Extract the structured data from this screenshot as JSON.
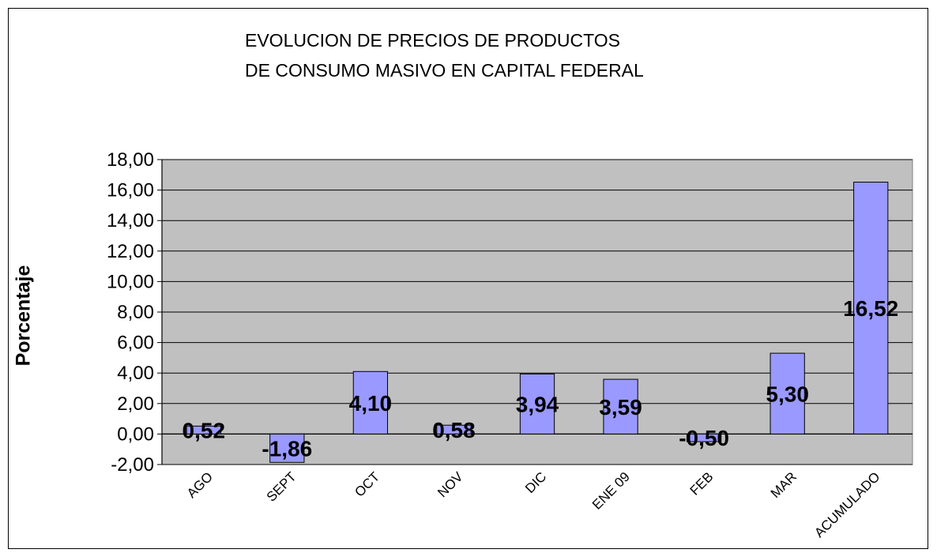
{
  "chart_data": {
    "type": "bar",
    "title_lines": [
      "EVOLUCION DE PRECIOS   DE PRODUCTOS",
      "DE CONSUMO MASIVO  EN CAPITAL FEDERAL"
    ],
    "ylabel": "Porcentaje",
    "xlabel": "",
    "categories": [
      "AGO",
      "SEPT",
      "OCT",
      "NOV",
      "DIC",
      "ENE 09",
      "FEB",
      "MAR",
      "ACUMULADO"
    ],
    "values": [
      0.52,
      -1.86,
      4.1,
      0.58,
      3.94,
      3.59,
      -0.5,
      5.3,
      16.52
    ],
    "value_labels": [
      "0,52",
      "-1,86",
      "4,10",
      "0,58",
      "3,94",
      "3,59",
      "-0,50",
      "5,30",
      "16,52"
    ],
    "ylim": [
      -2,
      18
    ],
    "yticks": [
      -2,
      0,
      2,
      4,
      6,
      8,
      10,
      12,
      14,
      16,
      18
    ],
    "ytick_labels": [
      "-2,00",
      "0,00",
      "2,00",
      "4,00",
      "6,00",
      "8,00",
      "10,00",
      "12,00",
      "14,00",
      "16,00",
      "18,00"
    ],
    "grid": true,
    "colors": {
      "bar": "#9999ff",
      "plot_bg": "#c0c0c0",
      "grid": "#000000"
    }
  }
}
